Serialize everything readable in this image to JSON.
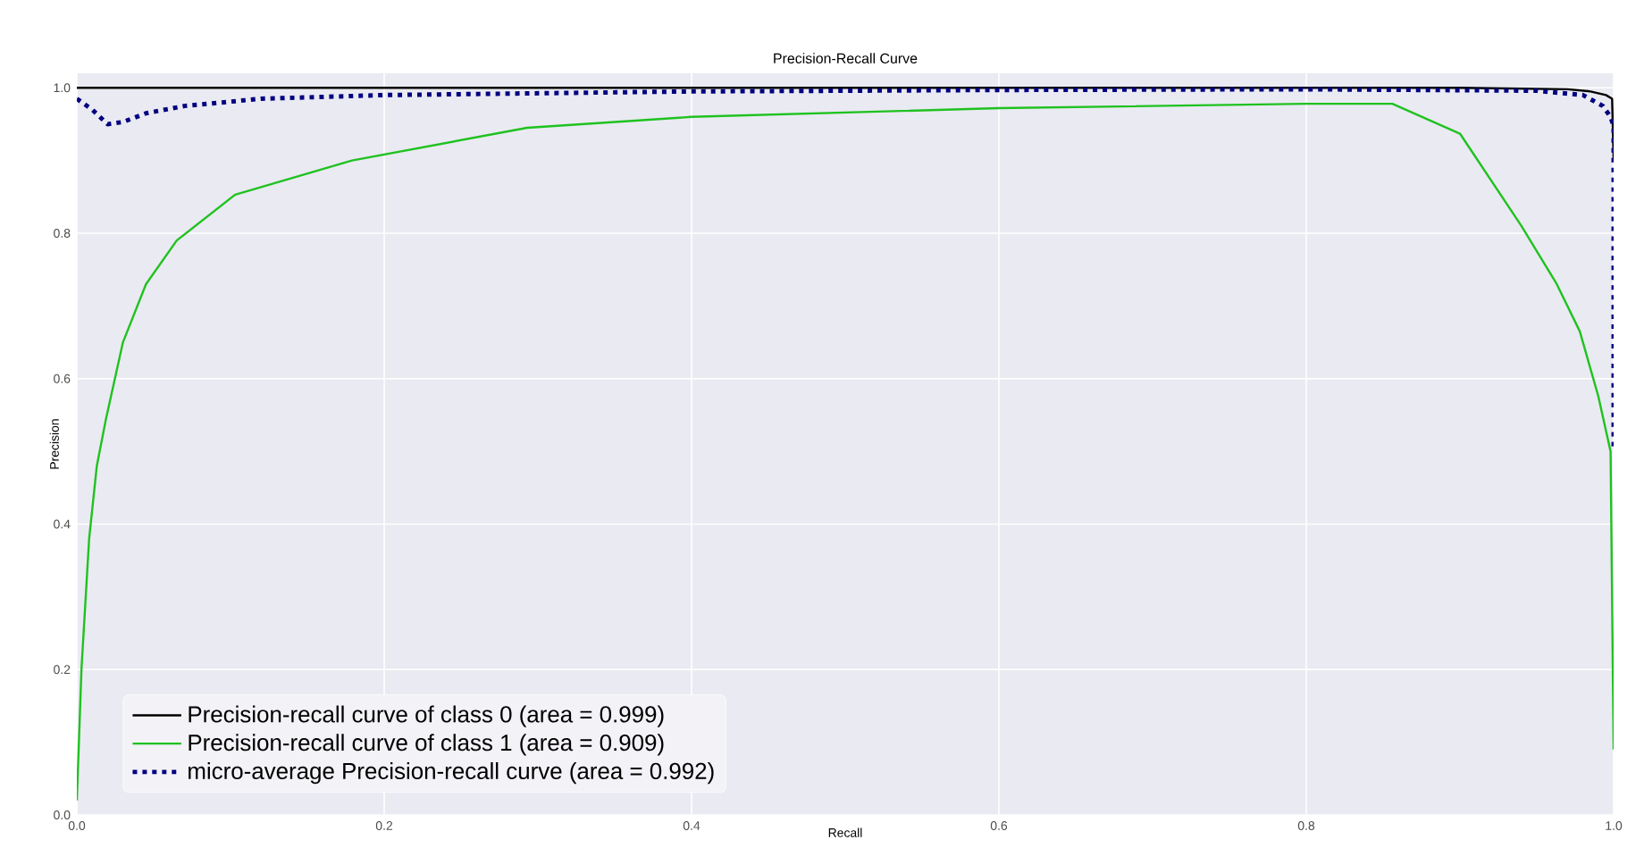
{
  "chart_data": {
    "type": "line",
    "title": "Precision-Recall Curve",
    "xlabel": "Recall",
    "ylabel": "Precision",
    "xlim": [
      0,
      1
    ],
    "ylim": [
      0,
      1.02
    ],
    "xticks": [
      {
        "value": 0,
        "label": "0.0"
      },
      0.2,
      0.4,
      0.6,
      0.8,
      {
        "value": 1,
        "label": "1.0"
      }
    ],
    "yticks": [
      {
        "value": 0,
        "label": "0.0"
      },
      0.2,
      0.4,
      0.6,
      0.8,
      {
        "value": 1,
        "label": "1.0"
      }
    ],
    "grid": true,
    "legend": "bottom left",
    "series": [
      {
        "name": "Precision-recall curve of class 0 (area = 0.999)",
        "color": "#000000",
        "line_style": "solid",
        "x": [
          0,
          0.5,
          0.9,
          0.97,
          0.985,
          0.995,
          0.999,
          1.0
        ],
        "values": [
          1.0,
          1.0,
          1.0,
          0.998,
          0.995,
          0.99,
          0.985,
          0.9
        ]
      },
      {
        "name": "Precision-recall curve of class 1 (area = 0.909)",
        "color": "#1fc21f",
        "line_style": "solid",
        "x": [
          0,
          0.003,
          0.008,
          0.013,
          0.019,
          0.03,
          0.045,
          0.065,
          0.103,
          0.179,
          0.293,
          0.4,
          0.6,
          0.8,
          0.856,
          0.9,
          0.94,
          0.963,
          0.978,
          0.99,
          0.998,
          1.0
        ],
        "values": [
          0.02,
          0.2,
          0.38,
          0.48,
          0.545,
          0.65,
          0.73,
          0.79,
          0.853,
          0.9,
          0.945,
          0.96,
          0.972,
          0.978,
          0.978,
          0.937,
          0.81,
          0.73,
          0.665,
          0.576,
          0.5,
          0.09
        ]
      },
      {
        "name": "micro-average Precision-recall curve (area = 0.992)",
        "color": "#000080",
        "line_style": "dotted",
        "x": [
          0,
          0.01,
          0.02,
          0.03,
          0.045,
          0.07,
          0.12,
          0.2,
          0.4,
          0.6,
          0.8,
          0.95,
          0.98,
          0.993,
          0.998,
          1.0,
          1.0
        ],
        "values": [
          0.985,
          0.97,
          0.95,
          0.953,
          0.965,
          0.975,
          0.985,
          0.99,
          0.995,
          0.997,
          0.998,
          0.996,
          0.99,
          0.975,
          0.96,
          0.947,
          0.5
        ]
      }
    ]
  }
}
